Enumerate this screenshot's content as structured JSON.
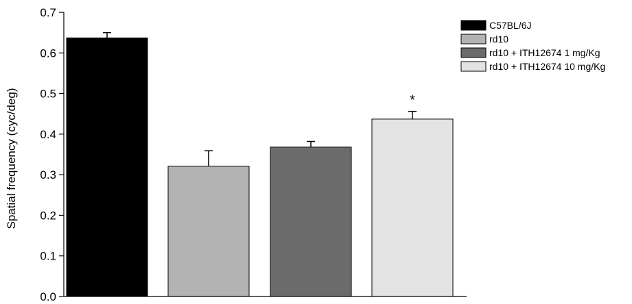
{
  "chart_data": {
    "type": "bar",
    "title": "",
    "xlabel": "",
    "ylabel": "Spatial frequency (cyc/deg)",
    "ylim": [
      0,
      0.7
    ],
    "yticks": [
      "0.0",
      "0.1",
      "0.2",
      "0.3",
      "0.4",
      "0.5",
      "0.6",
      "0.7"
    ],
    "grid": false,
    "legend_position": "top-right",
    "categories": [
      "C57BL/6J",
      "rd10",
      "rd10 + ITH12674 1 mg/Kg",
      "rd10 + ITH12674 10 mg/Kg"
    ],
    "values": [
      0.637,
      0.321,
      0.368,
      0.437
    ],
    "errors": [
      0.013,
      0.038,
      0.014,
      0.019
    ],
    "colors": [
      "#000000",
      "#b3b3b3",
      "#6b6b6b",
      "#e3e3e3"
    ],
    "annotations": [
      {
        "category_index": 3,
        "text": "*"
      }
    ]
  }
}
